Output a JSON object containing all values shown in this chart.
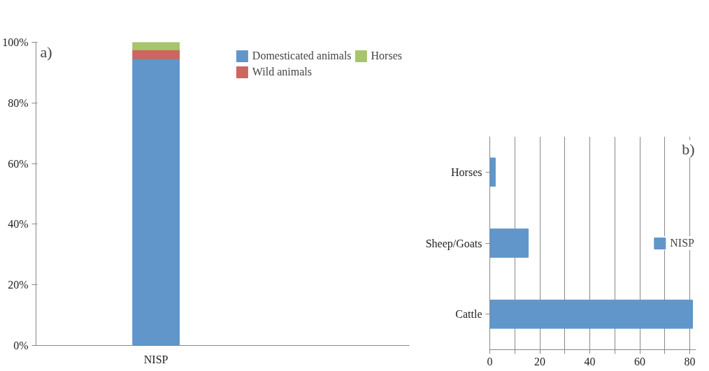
{
  "chart_data": [
    {
      "type": "bar",
      "stacked": true,
      "categories": [
        "NISP"
      ],
      "series": [
        {
          "name": "Domesticated animals",
          "color": "#6096c9",
          "values": [
            94.6
          ]
        },
        {
          "name": "Wild animals",
          "color": "#cc665e",
          "values": [
            2.9
          ]
        },
        {
          "name": "Horses",
          "color": "#a8c46c",
          "values": [
            2.5
          ]
        }
      ],
      "ylim": [
        0,
        100
      ],
      "yticks": [
        {
          "value": 0,
          "label": "0%"
        },
        {
          "value": 20,
          "label": "20%"
        },
        {
          "value": 40,
          "label": "40%"
        },
        {
          "value": 60,
          "label": "60%"
        },
        {
          "value": 80,
          "label": "80%"
        },
        {
          "value": 100,
          "label": "100%"
        }
      ],
      "grid": false,
      "legend": "top right",
      "annotations": [
        "a)"
      ]
    },
    {
      "type": "bar",
      "orientation": "horizontal",
      "categories": [
        "Horses",
        "Sheep/Goats",
        "Cattle"
      ],
      "series": [
        {
          "name": "NISP",
          "color": "#6096c9",
          "values": [
            2.2,
            15.4,
            81.1
          ]
        }
      ],
      "xlim": [
        0,
        82.5
      ],
      "xticks": [
        0,
        {
          "value": 10,
          "label": null
        },
        20,
        {
          "value": 30,
          "label": null
        },
        40,
        {
          "value": 50,
          "label": null
        },
        60,
        {
          "value": 70,
          "label": null
        },
        80
      ],
      "grid": "x",
      "legend": "right",
      "annotations": [
        "b)"
      ]
    }
  ]
}
